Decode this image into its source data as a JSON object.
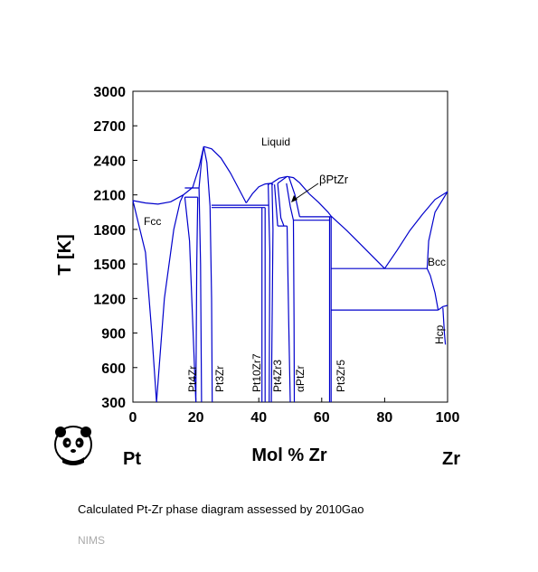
{
  "chart_data": {
    "type": "phase-diagram",
    "xlabel": "Mol % Zr",
    "ylabel": "T [K]",
    "xlim": [
      0,
      100
    ],
    "ylim": [
      300,
      3000
    ],
    "x_ticks": [
      "0",
      "20",
      "40",
      "60",
      "80",
      "100"
    ],
    "y_ticks": [
      "300",
      "600",
      "900",
      "1200",
      "1500",
      "1800",
      "2100",
      "2400",
      "2700",
      "3000"
    ],
    "element_left": "Pt",
    "element_right": "Zr",
    "phase_labels": {
      "liquid": "Liquid",
      "fcc": "Fcc",
      "bcc": "Bcc",
      "hcp": "Hcp",
      "beta_ptzr": "βPtZr",
      "pt4zr": "Pt4Zr",
      "pt3zr": "Pt3Zr",
      "pt10zr7": "Pt10Zr7",
      "pt4zr3": "Pt4Zr3",
      "alpha_ptzr": "αPtZr",
      "pt3zr5": "Pt3Zr5"
    },
    "invariant_temperatures_K": [
      2160,
      2010,
      1990,
      1910,
      1830,
      1460,
      1100
    ]
  },
  "caption": "Calculated Pt-Zr phase diagram assessed by 2010Gao",
  "footer": "NIMS",
  "colors": {
    "curve": "#0000cc",
    "axis": "#000000",
    "footer": "#aaaaaa"
  },
  "logo_icon": "panda-icon"
}
